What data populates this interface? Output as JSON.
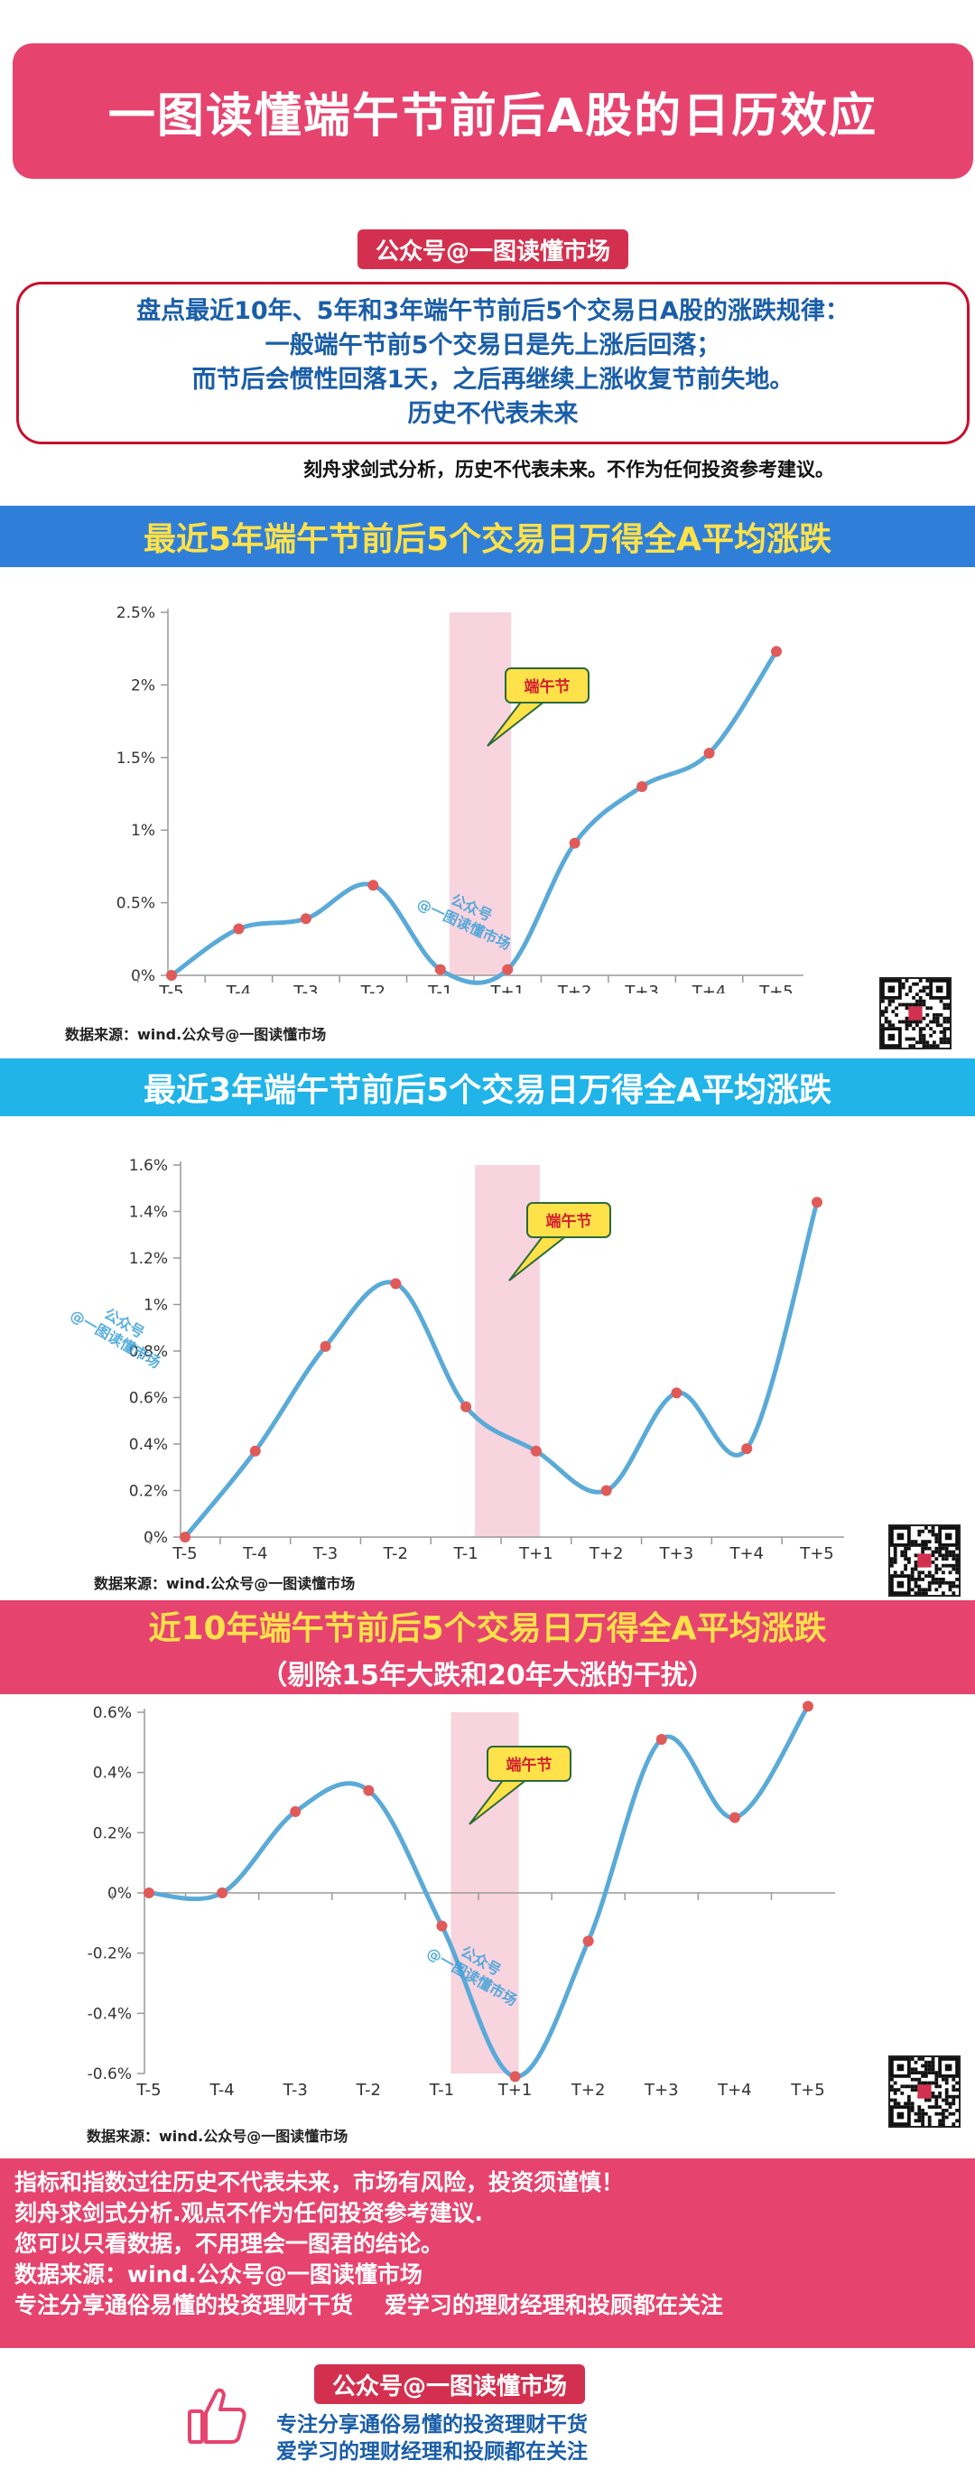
{
  "page": {
    "title": "一图读懂端午节前后A股的日历效应",
    "account_tag": "公众号@一图读懂市场",
    "summary_lines": [
      "盘点最近10年、5年和3年端午节前后5个交易日A股的涨跌规律：",
      "一般端午节前5个交易日是先上涨后回落；",
      "而节后会惯性回落1天，之后再继续上涨收复节前失地。",
      "历史不代表未来"
    ],
    "disclaimer": "刻舟求剑式分析，历史不代表未来。不作为任何投资参考建议。",
    "sections": [
      {
        "title": "最近5年端午节前后5个交易日万得全A平均涨跌"
      },
      {
        "title": "最近3年端午节前后5个交易日万得全A平均涨跌"
      },
      {
        "title": "近10年端午节前后5个交易日万得全A平均涨跌",
        "subtitle": "（剔除15年大跌和20年大涨的干扰）"
      }
    ],
    "callout_label": "端午节",
    "watermark": [
      "公众号",
      "@一图读懂市场"
    ],
    "source_label": "数据来源：wind.公众号@一图读懂市场",
    "footer_lines": [
      "指标和指数过往历史不代表未来，市场有风险，投资须谨慎！",
      "刻舟求剑式分析.观点不作为任何投资参考建议.",
      "您可以只看数据，不用理会一图君的结论。",
      "数据来源：wind.公众号@一图读懂市场",
      "专注分享通俗易懂的投资理财干货    爱学习的理财经理和投顾都在关注"
    ],
    "bottom_tag": "公众号@一图读懂市场",
    "slogan_lines": [
      "专注分享通俗易懂的投资理财干货",
      "爱学习的理财经理和投顾都在关注"
    ],
    "icons": {
      "thumb": "thumbs-up-icon",
      "qr": "qr-code-icon"
    },
    "colors": {
      "accent": "#e6436f",
      "line": "#5aaad8",
      "point": "#e05a5a",
      "highlight": "#f7cdd9",
      "callout": "#ffe14a"
    }
  },
  "chart_data": [
    {
      "type": "line",
      "title": "最近5年端午节前后5个交易日万得全A平均涨跌",
      "categories": [
        "T-5",
        "T-4",
        "T-3",
        "T-2",
        "T-1",
        "T+1",
        "T+2",
        "T+3",
        "T+4",
        "T+5"
      ],
      "y_tick_labels": [
        "0%",
        "0.5%",
        "1%",
        "1.5%",
        "2%",
        "2.5%"
      ],
      "ylim": [
        0,
        2.5
      ],
      "y_ticks": [
        0,
        0.5,
        1,
        1.5,
        2,
        2.5
      ],
      "highlight": [
        "T-1",
        "T+1"
      ],
      "grid": false,
      "series": [
        {
          "values": [
            0,
            0.32,
            0.39,
            0.62,
            0.04,
            0.04,
            0.91,
            1.3,
            1.53,
            2.23
          ]
        }
      ]
    },
    {
      "type": "line",
      "title": "最近3年端午节前后5个交易日万得全A平均涨跌",
      "categories": [
        "T-5",
        "T-4",
        "T-3",
        "T-2",
        "T-1",
        "T+1",
        "T+2",
        "T+3",
        "T+4",
        "T+5"
      ],
      "y_tick_labels": [
        "0%",
        "0.2%",
        "0.4%",
        "0.6%",
        "0.8%",
        "1%",
        "1.2%",
        "1.4%",
        "1.6%"
      ],
      "ylim": [
        0,
        1.6
      ],
      "y_ticks": [
        0,
        0.2,
        0.4,
        0.6,
        0.8,
        1.0,
        1.2,
        1.4,
        1.6
      ],
      "highlight": [
        "T-1",
        "T+1"
      ],
      "grid": false,
      "series": [
        {
          "values": [
            0,
            0.37,
            0.82,
            1.09,
            0.56,
            0.37,
            0.2,
            0.62,
            0.38,
            1.44
          ]
        }
      ]
    },
    {
      "type": "line",
      "title": "近10年端午节前后5个交易日万得全A平均涨跌",
      "subtitle": "（剔除15年大跌和20年大涨的干扰）",
      "categories": [
        "T-5",
        "T-4",
        "T-3",
        "T-2",
        "T-1",
        "T+1",
        "T+2",
        "T+3",
        "T+4",
        "T+5"
      ],
      "y_tick_labels": [
        "-0.6%",
        "-0.4%",
        "-0.2%",
        "0%",
        "0.2%",
        "0.4%",
        "0.6%"
      ],
      "ylim": [
        -0.6,
        0.6
      ],
      "y_ticks": [
        -0.6,
        -0.4,
        -0.2,
        0,
        0.2,
        0.4,
        0.6
      ],
      "highlight": [
        "T-1",
        "T+1"
      ],
      "grid": false,
      "series": [
        {
          "values": [
            0,
            0,
            0.27,
            0.34,
            -0.11,
            -0.61,
            -0.16,
            0.51,
            0.25,
            0.62
          ]
        }
      ]
    }
  ]
}
